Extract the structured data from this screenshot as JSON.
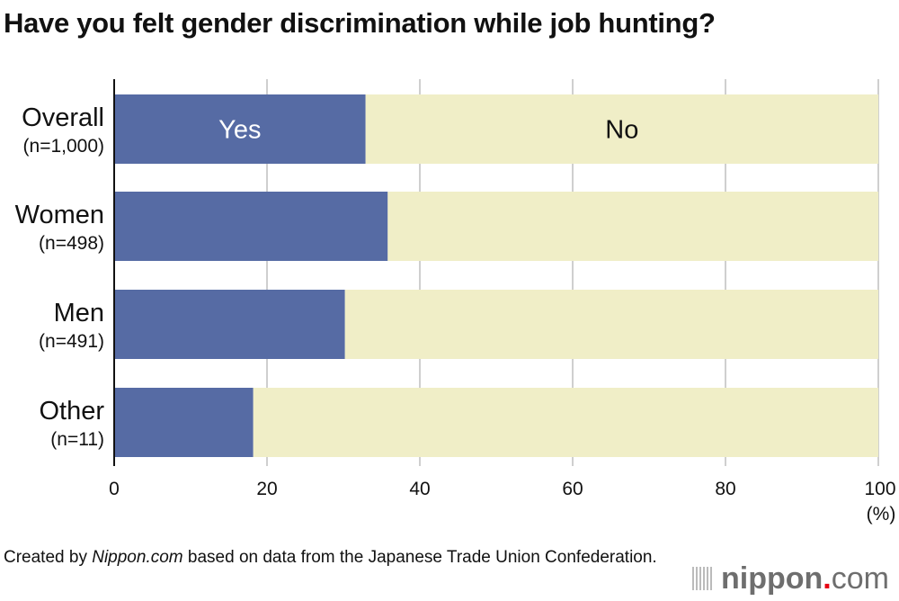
{
  "title": "Have you felt gender discrimination while job hunting?",
  "chart_data": {
    "type": "bar",
    "orientation": "horizontal",
    "stacked": true,
    "title": "Have you felt gender discrimination while job hunting?",
    "categories": [
      {
        "label": "Overall",
        "n": "(n=1,000)"
      },
      {
        "label": "Women",
        "n": "(n=498)"
      },
      {
        "label": "Men",
        "n": "(n=491)"
      },
      {
        "label": "Other",
        "n": "(n=11)"
      }
    ],
    "series": [
      {
        "name": "Yes",
        "values": [
          32.9,
          35.8,
          30.2,
          18.2
        ],
        "color": "#566ba4"
      },
      {
        "name": "No",
        "values": [
          67.1,
          64.2,
          69.8,
          81.8
        ],
        "color": "#f0eec7"
      }
    ],
    "xlim": [
      0,
      100
    ],
    "xticks": [
      "0",
      "20",
      "40",
      "60",
      "80",
      "100"
    ],
    "xunit": "(%)",
    "grid": true
  },
  "footer": {
    "prefix": "Created by ",
    "source": "Nippon.com",
    "suffix": " based on data from the Japanese Trade Union Confederation."
  },
  "logo": {
    "name": "nippon",
    "dot": ".",
    "tld": "com"
  }
}
